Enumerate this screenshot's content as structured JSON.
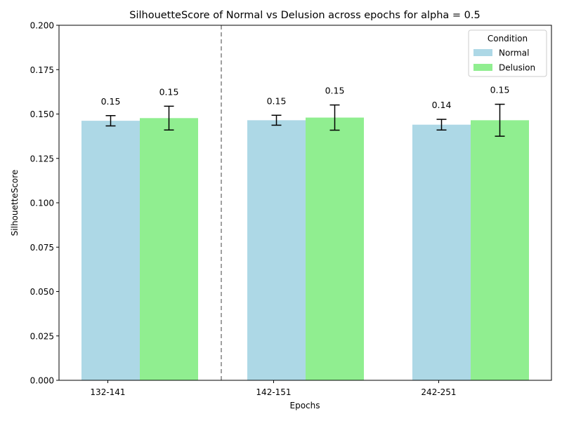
{
  "chart_data": {
    "type": "bar",
    "title": "SilhouetteScore of Normal vs Delusion across epochs for alpha = 0.5",
    "xlabel": "Epochs",
    "ylabel": "SilhouetteScore",
    "categories": [
      "132-141",
      "142-151",
      "242-251"
    ],
    "ylim": [
      0,
      0.2
    ],
    "yticks": [
      "0.000",
      "0.025",
      "0.050",
      "0.075",
      "0.100",
      "0.125",
      "0.150",
      "0.175",
      "0.200"
    ],
    "series": [
      {
        "name": "Normal",
        "color": "#add8e6",
        "values": [
          0.1462,
          0.1465,
          0.144
        ],
        "errors": [
          0.0029,
          0.0028,
          0.003
        ],
        "labels": [
          "0.15",
          "0.15",
          "0.14"
        ]
      },
      {
        "name": "Delusion",
        "color": "#90ee90",
        "values": [
          0.1477,
          0.148,
          0.1465
        ],
        "errors": [
          0.0067,
          0.0071,
          0.009
        ],
        "labels": [
          "0.15",
          "0.15",
          "0.15"
        ]
      }
    ],
    "legend": {
      "title": "Condition",
      "position": "top-right"
    },
    "grid": false,
    "separator": {
      "after_category": 0,
      "style": "dashed",
      "color": "#808080"
    }
  }
}
